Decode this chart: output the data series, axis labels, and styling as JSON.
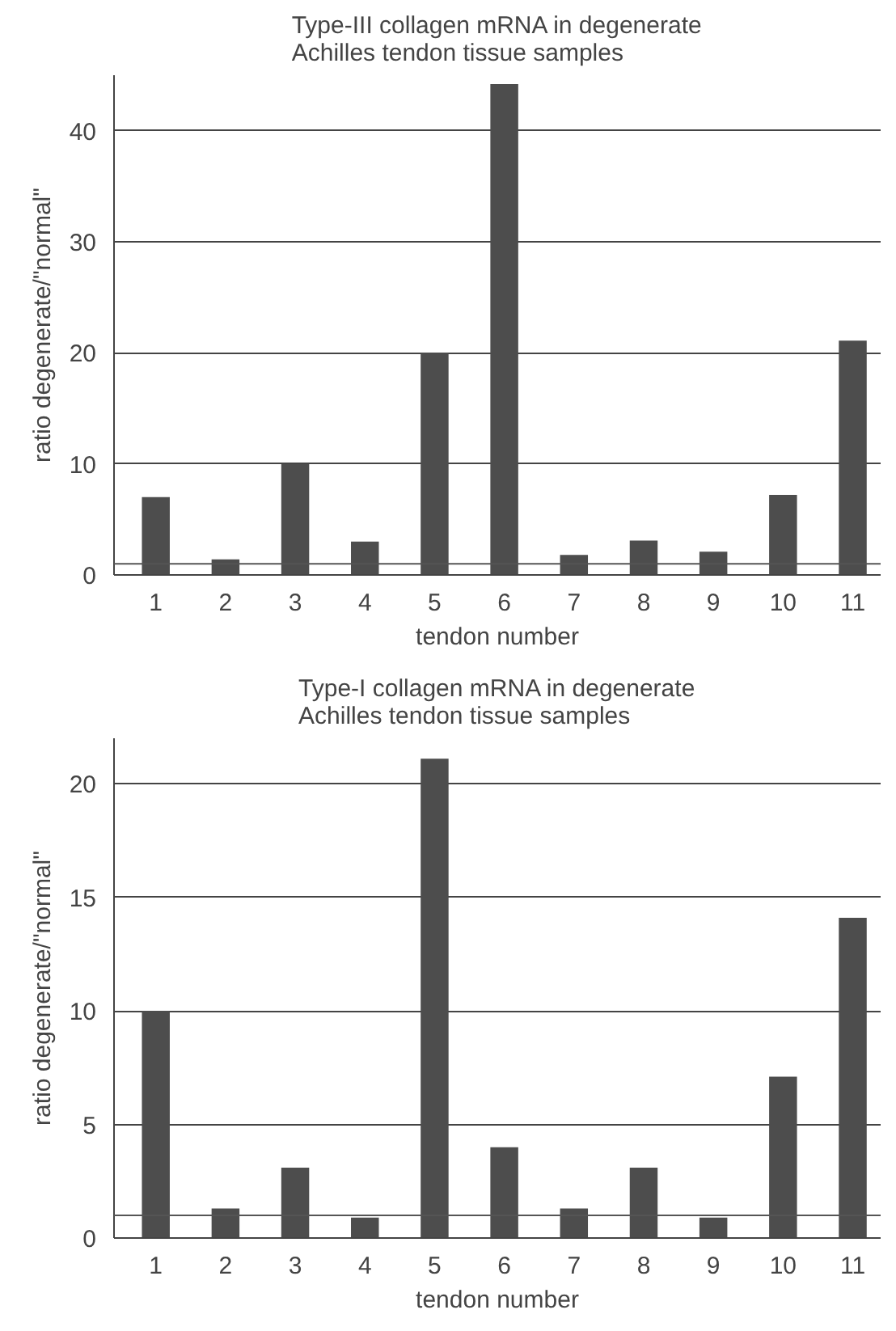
{
  "chart_data": [
    {
      "type": "bar",
      "title": "Type-III collagen mRNA in degenerate\nAchilles tendon tissue samples",
      "xlabel": "tendon number",
      "ylabel": "ratio degenerate/\"normal\"",
      "categories": [
        "1",
        "2",
        "3",
        "4",
        "5",
        "6",
        "7",
        "8",
        "9",
        "10",
        "11"
      ],
      "series": [
        {
          "color": "#4d4d4d",
          "values": [
            7,
            1.4,
            10,
            3,
            20,
            44.2,
            1.8,
            3.1,
            2.1,
            7.2,
            21.1
          ]
        }
      ],
      "ylim": [
        0,
        45
      ],
      "yticks": [
        0,
        10,
        20,
        30,
        40
      ],
      "grid": "y",
      "ref_lines": [
        {
          "axis": "y",
          "value": 1,
          "color": "#555555"
        }
      ]
    },
    {
      "type": "bar",
      "title": "Type-I collagen mRNA in degenerate\nAchilles tendon tissue samples",
      "xlabel": "tendon number",
      "ylabel": "ratio degenerate/\"normal\"",
      "categories": [
        "1",
        "2",
        "3",
        "4",
        "5",
        "6",
        "7",
        "8",
        "9",
        "10",
        "11"
      ],
      "series": [
        {
          "color": "#4d4d4d",
          "values": [
            10,
            1.3,
            3.1,
            0.9,
            21.1,
            4,
            1.3,
            3.1,
            0.9,
            7.1,
            14.1
          ]
        }
      ],
      "ylim": [
        0,
        22
      ],
      "yticks": [
        0,
        5,
        10,
        15,
        20
      ],
      "grid": "y",
      "ref_lines": [
        {
          "axis": "y",
          "value": 1,
          "color": "#555555"
        }
      ]
    }
  ]
}
